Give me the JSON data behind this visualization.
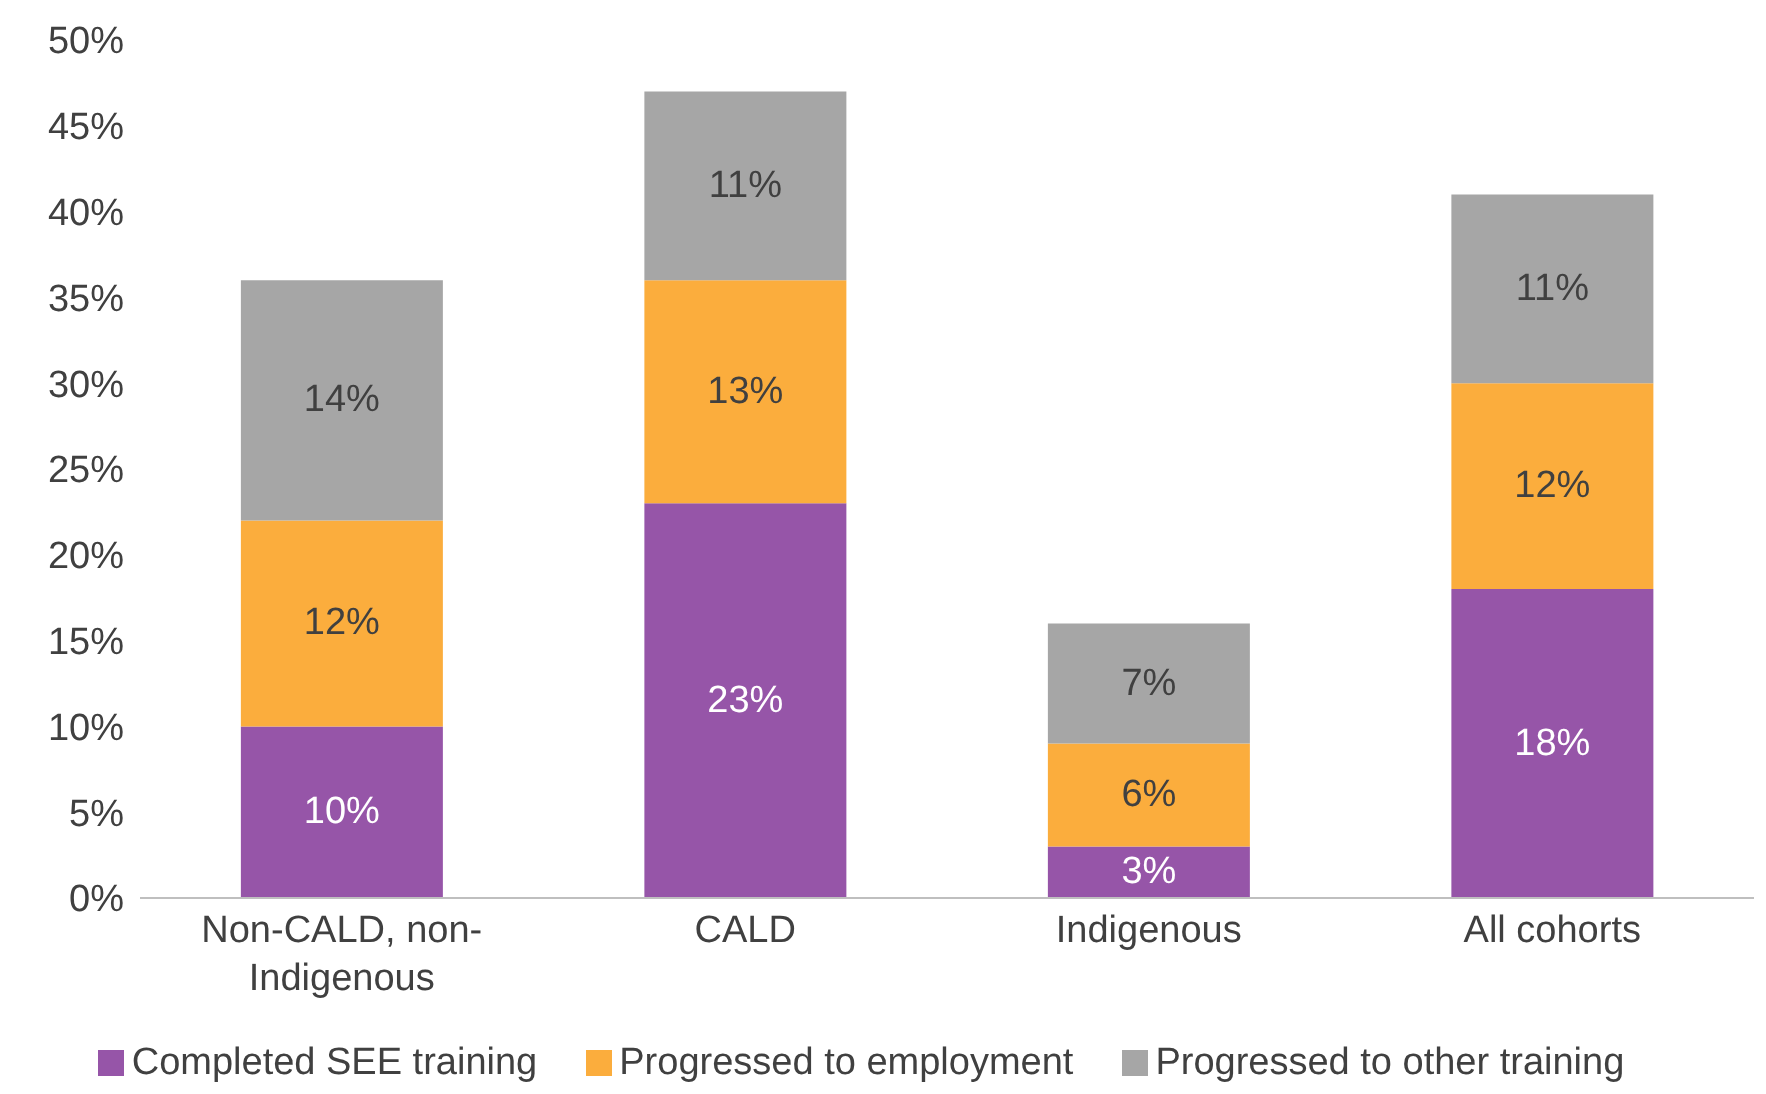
{
  "chart_data": {
    "type": "bar",
    "stacked": true,
    "categories": [
      "Non-CALD, non-Indigenous",
      "CALD",
      "Indigenous",
      "All cohorts"
    ],
    "series": [
      {
        "name": "Completed SEE training",
        "color": "#9655a8",
        "values": [
          10,
          23,
          3,
          18
        ],
        "value_labels": [
          "10%",
          "23%",
          "3%",
          "18%"
        ]
      },
      {
        "name": "Progressed to employment",
        "color": "#fbad3d",
        "values": [
          12,
          13,
          6,
          12
        ],
        "value_labels": [
          "12%",
          "13%",
          "6%",
          "12%"
        ]
      },
      {
        "name": "Progressed to other training",
        "color": "#a6a6a6",
        "values": [
          14,
          11,
          7,
          11
        ],
        "value_labels": [
          "14%",
          "11%",
          "7%",
          "11%"
        ]
      }
    ],
    "ylim": [
      0,
      50
    ],
    "yticks": [
      {
        "value": 0,
        "label": "0%"
      },
      {
        "value": 5,
        "label": "5%"
      },
      {
        "value": 10,
        "label": "10%"
      },
      {
        "value": 15,
        "label": "15%"
      },
      {
        "value": 20,
        "label": "20%"
      },
      {
        "value": 25,
        "label": "25%"
      },
      {
        "value": 30,
        "label": "30%"
      },
      {
        "value": 35,
        "label": "35%"
      },
      {
        "value": 40,
        "label": "40%"
      },
      {
        "value": 45,
        "label": "45%"
      },
      {
        "value": 50,
        "label": "50%"
      }
    ],
    "grid": false,
    "legend": "bottom"
  }
}
